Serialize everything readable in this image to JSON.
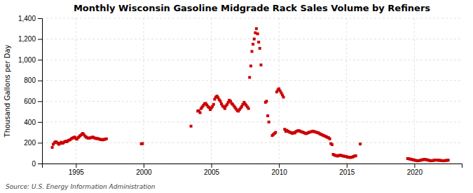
{
  "chart_data": {
    "type": "scatter",
    "title": "Monthly Wisconsin Gasoline Midgrade Rack Sales Volume by Refiners",
    "y_label": "Thousand Gallons per Day",
    "annotations": [
      "Source: U.S. Energy Information Administration"
    ],
    "color": "#cc0000",
    "marker": "square",
    "grid": true,
    "xlim": [
      1992.5,
      2023.5
    ],
    "xticks": [
      1995,
      2000,
      2005,
      2010,
      2015,
      2020
    ],
    "ylim": [
      0,
      1400
    ],
    "yticks": [
      0,
      200,
      400,
      600,
      800,
      {
        "value": 1000,
        "label": "1,000"
      },
      {
        "value": 1200,
        "label": "1,200"
      },
      {
        "value": 1400,
        "label": "1,400"
      }
    ],
    "x": [
      1993.25,
      1993.33,
      1993.42,
      1993.5,
      1993.58,
      1993.67,
      1993.75,
      1993.83,
      1993.92,
      1994.0,
      1994.08,
      1994.17,
      1994.25,
      1994.33,
      1994.42,
      1994.5,
      1994.58,
      1994.67,
      1994.75,
      1994.83,
      1994.92,
      1995.0,
      1995.08,
      1995.17,
      1995.25,
      1995.33,
      1995.42,
      1995.5,
      1995.58,
      1995.67,
      1995.75,
      1995.83,
      1995.92,
      1996.0,
      1996.08,
      1996.17,
      1996.25,
      1996.33,
      1996.42,
      1996.5,
      1996.58,
      1996.67,
      1996.75,
      1996.83,
      1996.92,
      1997.0,
      1997.08,
      1997.17,
      1997.25,
      1999.83,
      1999.92,
      2003.5,
      2004.0,
      2004.08,
      2004.17,
      2004.25,
      2004.33,
      2004.42,
      2004.5,
      2004.58,
      2004.67,
      2004.75,
      2004.83,
      2004.92,
      2005.0,
      2005.08,
      2005.17,
      2005.25,
      2005.33,
      2005.42,
      2005.5,
      2005.58,
      2005.67,
      2005.75,
      2005.83,
      2005.92,
      2006.0,
      2006.08,
      2006.17,
      2006.25,
      2006.33,
      2006.42,
      2006.5,
      2006.58,
      2006.67,
      2006.75,
      2006.83,
      2006.92,
      2007.0,
      2007.08,
      2007.17,
      2007.25,
      2007.33,
      2007.42,
      2007.5,
      2007.58,
      2007.67,
      2007.75,
      2007.83,
      2007.92,
      2008.0,
      2008.08,
      2008.17,
      2008.25,
      2008.33,
      2008.42,
      2008.5,
      2008.58,
      2008.67,
      2009.0,
      2009.08,
      2009.17,
      2009.25,
      2009.5,
      2009.58,
      2009.67,
      2009.75,
      2009.83,
      2009.92,
      2010.0,
      2010.08,
      2010.17,
      2010.25,
      2010.33,
      2010.42,
      2010.5,
      2010.58,
      2010.67,
      2010.75,
      2010.83,
      2010.92,
      2011.0,
      2011.08,
      2011.17,
      2011.25,
      2011.33,
      2011.42,
      2011.5,
      2011.58,
      2011.67,
      2011.75,
      2011.83,
      2011.92,
      2012.0,
      2012.08,
      2012.17,
      2012.25,
      2012.33,
      2012.42,
      2012.5,
      2012.58,
      2012.67,
      2012.75,
      2012.83,
      2012.92,
      2013.0,
      2013.08,
      2013.17,
      2013.25,
      2013.33,
      2013.42,
      2013.5,
      2013.58,
      2013.67,
      2013.75,
      2013.83,
      2013.92,
      2014.0,
      2014.08,
      2014.17,
      2014.25,
      2014.33,
      2014.42,
      2014.5,
      2014.58,
      2014.67,
      2014.75,
      2014.83,
      2014.92,
      2015.0,
      2015.08,
      2015.17,
      2015.25,
      2015.33,
      2015.42,
      2015.5,
      2015.58,
      2015.67,
      2016.0,
      2019.5,
      2019.58,
      2019.67,
      2019.75,
      2019.83,
      2019.92,
      2020.0,
      2020.08,
      2020.17,
      2020.25,
      2020.33,
      2020.42,
      2020.5,
      2020.58,
      2020.67,
      2020.75,
      2020.83,
      2020.92,
      2021.0,
      2021.08,
      2021.17,
      2021.25,
      2021.33,
      2021.42,
      2021.5,
      2021.58,
      2021.67,
      2021.75,
      2021.83,
      2021.92,
      2022.0,
      2022.08,
      2022.17,
      2022.25,
      2022.33,
      2022.42,
      2022.5
    ],
    "values": [
      155,
      185,
      200,
      210,
      205,
      195,
      185,
      195,
      205,
      195,
      200,
      210,
      215,
      210,
      220,
      225,
      230,
      240,
      245,
      250,
      255,
      240,
      235,
      250,
      260,
      270,
      280,
      290,
      280,
      265,
      255,
      248,
      245,
      245,
      248,
      252,
      255,
      248,
      245,
      240,
      242,
      238,
      235,
      230,
      232,
      228,
      232,
      235,
      238,
      190,
      192,
      360,
      505,
      510,
      490,
      530,
      545,
      560,
      575,
      580,
      565,
      550,
      540,
      520,
      535,
      550,
      570,
      620,
      640,
      650,
      635,
      615,
      600,
      575,
      555,
      545,
      530,
      555,
      570,
      590,
      610,
      600,
      580,
      570,
      555,
      540,
      525,
      510,
      505,
      520,
      535,
      550,
      570,
      590,
      575,
      560,
      545,
      530,
      830,
      940,
      1080,
      1150,
      1200,
      1260,
      1300,
      1250,
      1170,
      1110,
      950,
      590,
      600,
      460,
      400,
      270,
      280,
      290,
      300,
      690,
      710,
      720,
      700,
      680,
      660,
      640,
      330,
      310,
      320,
      310,
      305,
      300,
      295,
      290,
      298,
      295,
      308,
      312,
      318,
      315,
      310,
      305,
      302,
      298,
      292,
      288,
      292,
      298,
      302,
      305,
      308,
      312,
      308,
      305,
      302,
      298,
      295,
      288,
      282,
      278,
      272,
      268,
      262,
      258,
      252,
      248,
      238,
      192,
      182,
      88,
      82,
      78,
      75,
      72,
      78,
      80,
      78,
      75,
      72,
      70,
      68,
      65,
      62,
      60,
      58,
      60,
      62,
      68,
      72,
      75,
      188,
      48,
      46,
      43,
      40,
      38,
      36,
      33,
      30,
      28,
      26,
      28,
      30,
      33,
      36,
      38,
      40,
      38,
      36,
      33,
      30,
      28,
      26,
      28,
      30,
      33,
      34,
      33,
      32,
      31,
      30,
      28,
      27,
      26,
      28,
      30,
      31,
      32
    ]
  }
}
